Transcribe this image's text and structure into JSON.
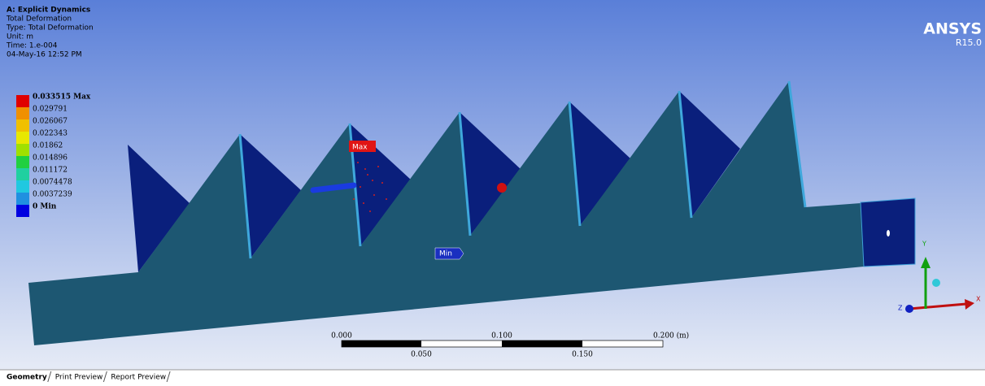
{
  "header": {
    "lines": [
      "A: Explicit Dynamics",
      "Total Deformation",
      "Type: Total Deformation",
      "Unit: m",
      "Time: 1.e-004",
      "04-May-16 12:52 PM"
    ]
  },
  "legend": {
    "labels": [
      "0.033515 Max",
      "0.029791",
      "0.026067",
      "0.022343",
      "0.01862",
      "0.014896",
      "0.011172",
      "0.0074478",
      "0.0037239",
      "0 Min"
    ]
  },
  "logo": {
    "name": "ANSYS",
    "version": "R15.0"
  },
  "probes": {
    "max": "Max",
    "min": "Min"
  },
  "scale_bar": {
    "top": [
      "0.000",
      "0.100",
      "0.200 (m)"
    ],
    "bottom": [
      "0.050",
      "0.150"
    ]
  },
  "triad": {
    "x": "X",
    "y": "Y",
    "z": "Z"
  },
  "tabs": [
    "Geometry",
    "Print Preview",
    "Report Preview"
  ]
}
